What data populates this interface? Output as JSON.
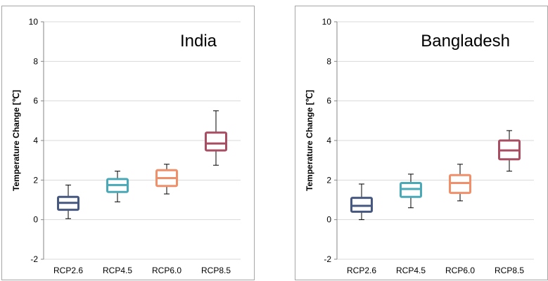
{
  "chart_data": [
    {
      "type": "box",
      "title": "India",
      "ylabel": "Temperature Change [℃]",
      "xlabel": "",
      "ylim": [
        -2,
        10
      ],
      "yticks": [
        -2,
        0,
        2,
        4,
        6,
        8,
        10
      ],
      "grid": "horizontal",
      "categories": [
        "RCP2.6",
        "RCP4.5",
        "RCP6.0",
        "RCP8.5"
      ],
      "colors": [
        "#475880",
        "#4aa9b7",
        "#f0906b",
        "#a84d62"
      ],
      "boxes": [
        {
          "min": 0.05,
          "q1": 0.5,
          "median": 0.85,
          "q3": 1.15,
          "max": 1.75
        },
        {
          "min": 0.9,
          "q1": 1.4,
          "median": 1.75,
          "q3": 2.05,
          "max": 2.45
        },
        {
          "min": 1.3,
          "q1": 1.7,
          "median": 2.1,
          "q3": 2.5,
          "max": 2.8
        },
        {
          "min": 2.75,
          "q1": 3.5,
          "median": 3.85,
          "q3": 4.4,
          "max": 5.5
        }
      ]
    },
    {
      "type": "box",
      "title": "Bangladesh",
      "ylabel": "Temperature Change [℃]",
      "xlabel": "",
      "ylim": [
        -2,
        10
      ],
      "yticks": [
        -2,
        0,
        2,
        4,
        6,
        8,
        10
      ],
      "grid": "horizontal",
      "categories": [
        "RCP2.6",
        "RCP4.5",
        "RCP6.0",
        "RCP8.5"
      ],
      "colors": [
        "#475880",
        "#4aa9b7",
        "#f0906b",
        "#a84d62"
      ],
      "boxes": [
        {
          "min": 0.0,
          "q1": 0.4,
          "median": 0.7,
          "q3": 1.1,
          "max": 1.8
        },
        {
          "min": 0.6,
          "q1": 1.15,
          "median": 1.55,
          "q3": 1.85,
          "max": 2.3
        },
        {
          "min": 0.95,
          "q1": 1.35,
          "median": 1.85,
          "q3": 2.25,
          "max": 2.8
        },
        {
          "min": 2.45,
          "q1": 3.05,
          "median": 3.5,
          "q3": 4.0,
          "max": 4.5
        }
      ]
    }
  ]
}
